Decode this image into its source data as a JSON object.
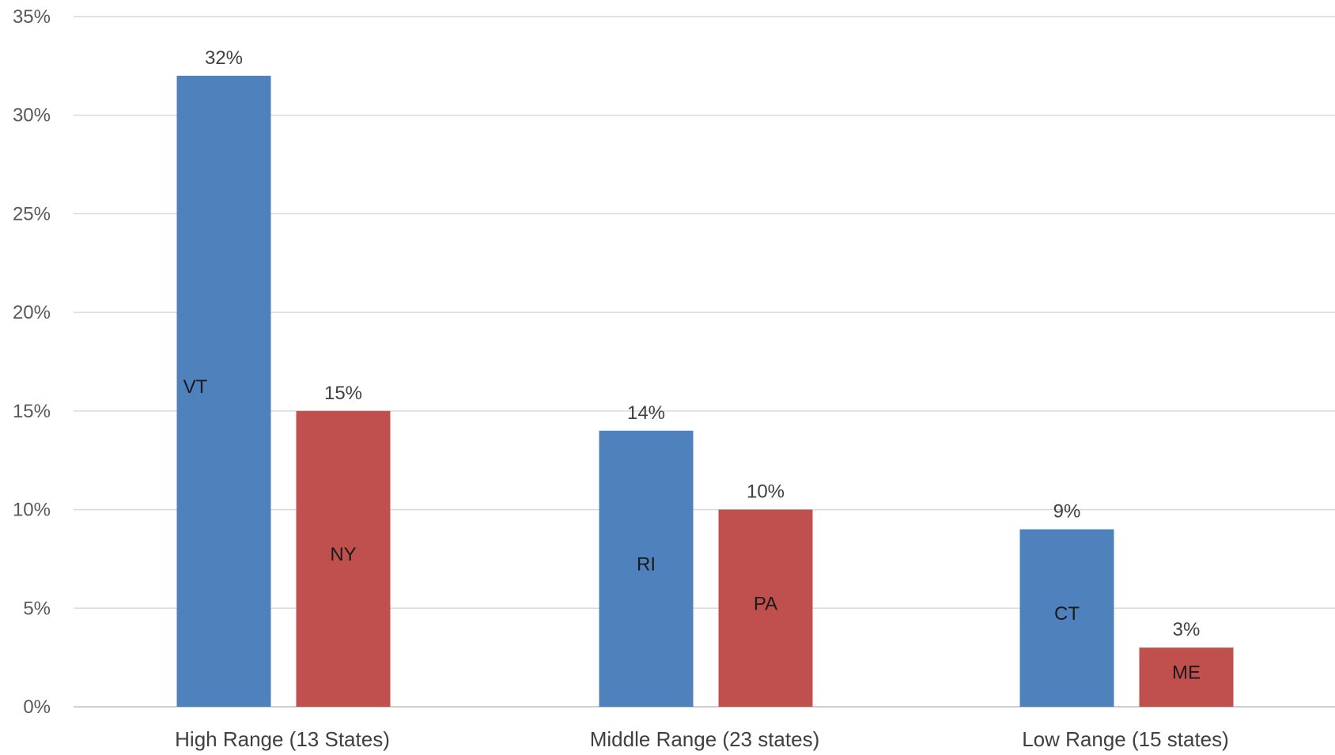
{
  "chart_data": {
    "type": "bar",
    "categories": [
      "High Range (13 States)",
      "Middle Range (23 states)",
      "Low Range (15 states)"
    ],
    "bars": [
      {
        "category_index": 0,
        "slot": 0,
        "state": "VT",
        "value": 32,
        "value_label": "32%",
        "color": "#4f81bd"
      },
      {
        "category_index": 0,
        "slot": 1,
        "state": "NY",
        "value": 15,
        "value_label": "15%",
        "color": "#c0504d"
      },
      {
        "category_index": 1,
        "slot": 0,
        "state": "RI",
        "value": 14,
        "value_label": "14%",
        "color": "#4f81bd"
      },
      {
        "category_index": 1,
        "slot": 1,
        "state": "PA",
        "value": 10,
        "value_label": "10%",
        "color": "#c0504d"
      },
      {
        "category_index": 2,
        "slot": 0,
        "state": "CT",
        "value": 9,
        "value_label": "9%",
        "color": "#4f81bd"
      },
      {
        "category_index": 2,
        "slot": 1,
        "state": "ME",
        "value": 3,
        "value_label": "3%",
        "color": "#c0504d"
      }
    ],
    "y_ticks": [
      "0%",
      "5%",
      "10%",
      "15%",
      "20%",
      "25%",
      "30%",
      "35%"
    ],
    "ylim": [
      0,
      35
    ],
    "y_tick_step": 5,
    "title": "",
    "xlabel": "",
    "ylabel": "",
    "grid": true,
    "legend": "none"
  }
}
